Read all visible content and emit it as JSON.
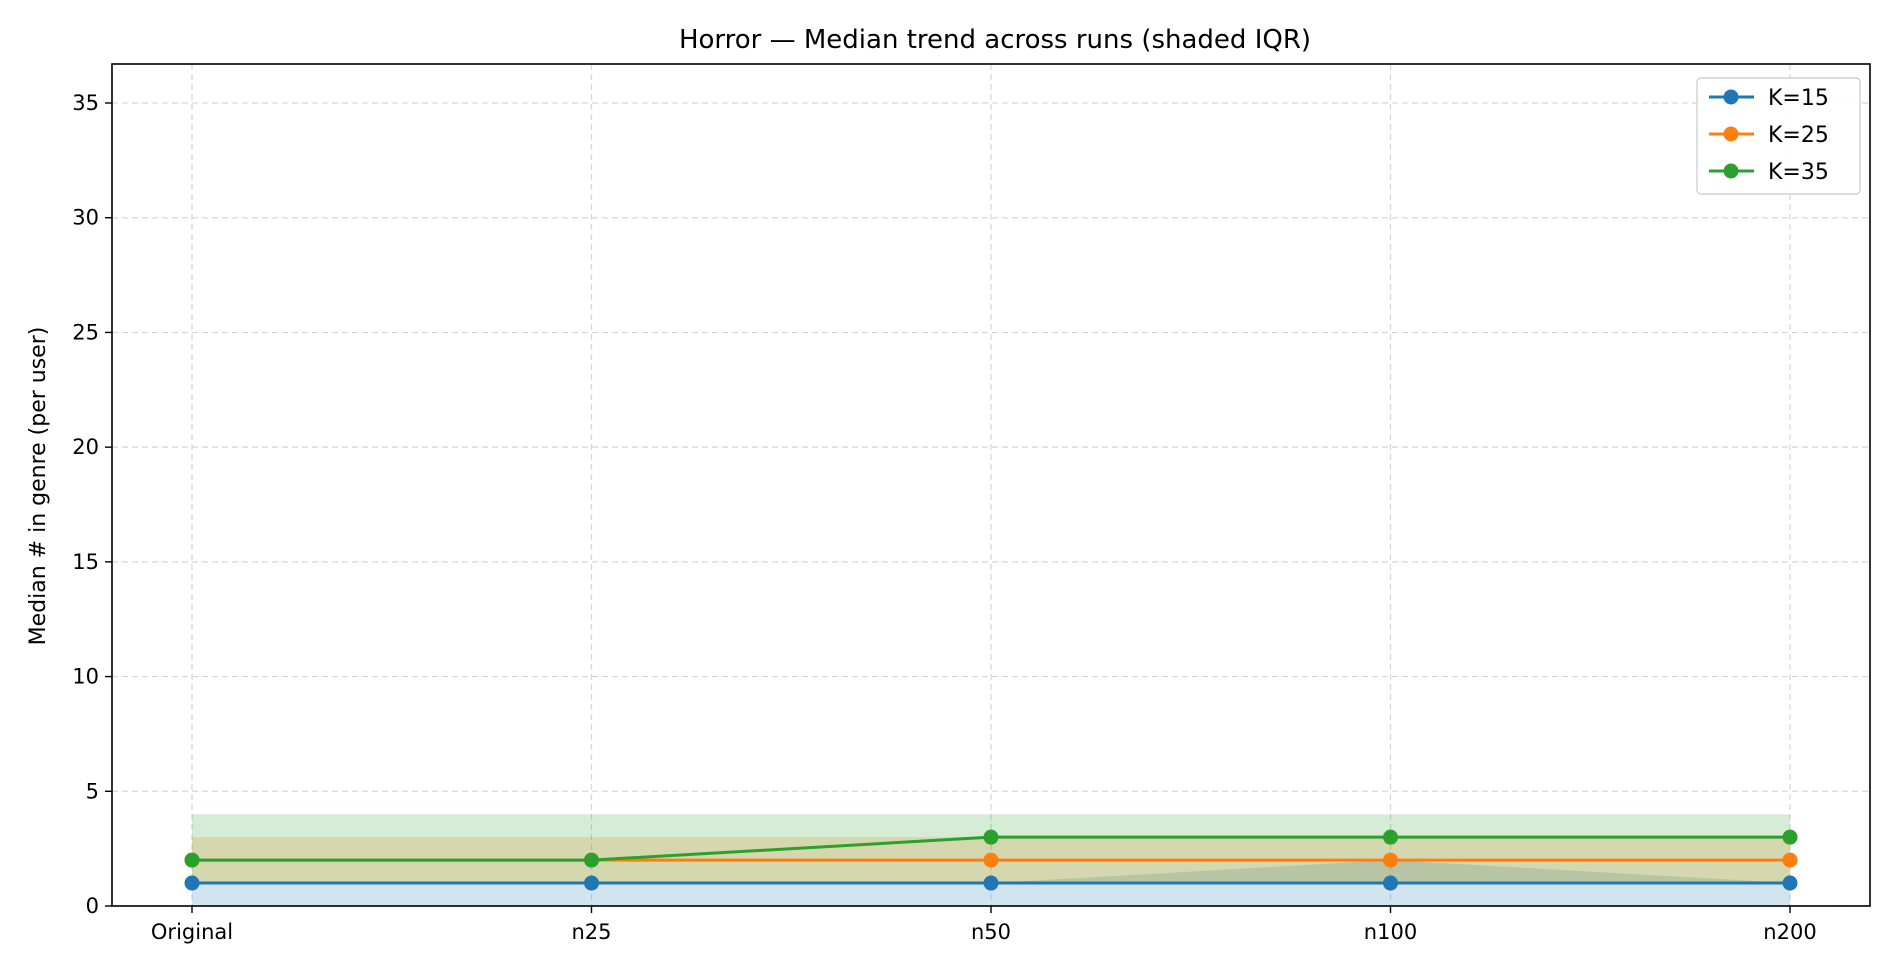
{
  "chart_data": {
    "type": "line",
    "title": "Horror — Median trend across runs (shaded IQR)",
    "xlabel": "",
    "ylabel": "Median # in genre (per user)",
    "categories": [
      "Original",
      "n25",
      "n50",
      "n100",
      "n200"
    ],
    "ylim": [
      0,
      36.7
    ],
    "yticks": [
      0,
      5,
      10,
      15,
      20,
      25,
      30,
      35
    ],
    "grid": true,
    "legend_position": "top-right",
    "series": [
      {
        "name": "K=15",
        "color": "#1f77b4",
        "values": [
          1,
          1,
          1,
          1,
          1
        ],
        "iqr_low": [
          0,
          0,
          0,
          0,
          0
        ],
        "iqr_high": [
          1,
          1,
          1,
          2,
          1
        ]
      },
      {
        "name": "K=25",
        "color": "#ff7f0e",
        "values": [
          2,
          2,
          2,
          2,
          2
        ],
        "iqr_low": [
          1,
          1,
          1,
          1,
          1
        ],
        "iqr_high": [
          3,
          3,
          3,
          3,
          3
        ]
      },
      {
        "name": "K=35",
        "color": "#2ca02c",
        "values": [
          2,
          2,
          3,
          3,
          3
        ],
        "iqr_low": [
          1,
          1,
          1,
          1,
          1
        ],
        "iqr_high": [
          4,
          4,
          4,
          4,
          4
        ]
      }
    ]
  }
}
